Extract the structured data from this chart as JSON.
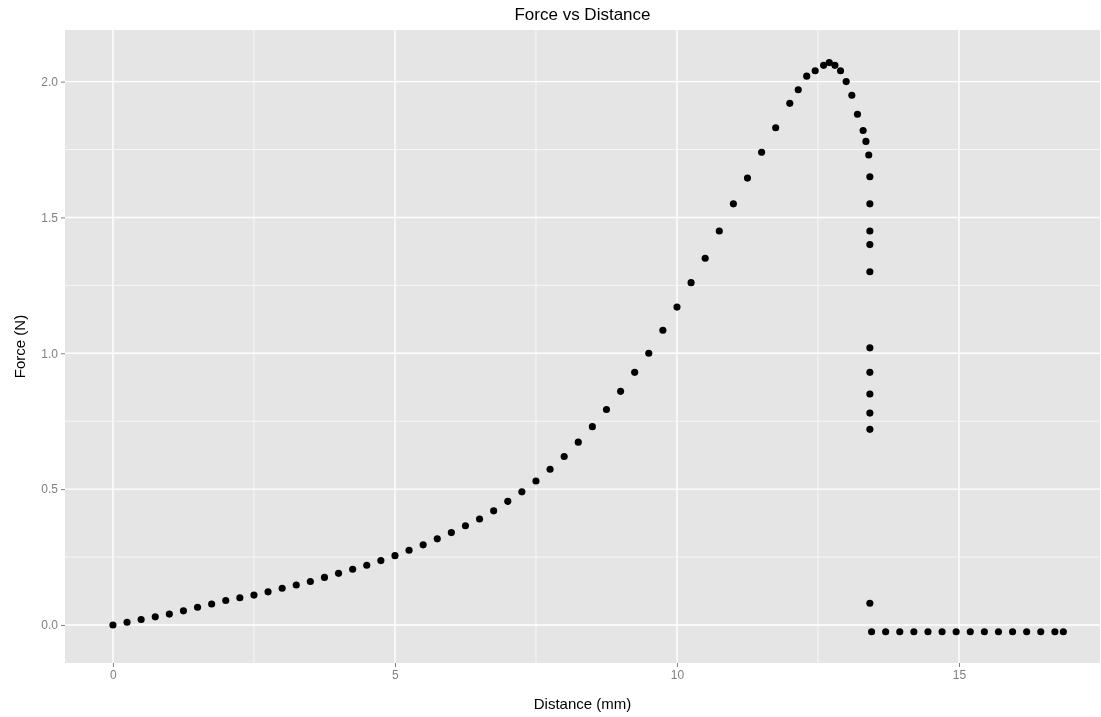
{
  "chart_data": {
    "type": "scatter",
    "title": "Force vs Distance",
    "xlabel": "Distance (mm)",
    "ylabel": "Force (N)",
    "xlim": [
      -0.85,
      17.5
    ],
    "ylim": [
      -0.14,
      2.19
    ],
    "xticks": [
      0,
      {
        "value": 2.5,
        "label": null
      },
      5,
      {
        "value": 7.5,
        "label": null
      },
      10,
      {
        "value": 12.5,
        "label": null
      },
      15
    ],
    "yticks": [
      "0.0",
      {
        "value": 0.25,
        "label": null
      },
      {
        "value": 0.5,
        "label": "0.5"
      },
      {
        "value": 0.75,
        "label": null
      },
      {
        "value": 1,
        "label": "1.0"
      },
      {
        "value": 1.25,
        "label": null
      },
      {
        "value": 1.5,
        "label": "1.5"
      },
      {
        "value": 1.75,
        "label": null
      },
      {
        "value": 2,
        "label": "2.0"
      }
    ],
    "grid": true,
    "marker": "circle",
    "series": [
      {
        "color": "#000000",
        "x": [
          0,
          0.25,
          0.5,
          0.75,
          1,
          1.25,
          1.5,
          1.75,
          2,
          2.25,
          2.5,
          2.75,
          3,
          3.25,
          3.5,
          3.75,
          4,
          4.25,
          4.5,
          4.75,
          5,
          5.25,
          5.5,
          5.75,
          6,
          6.25,
          6.5,
          6.75,
          7,
          7.25,
          7.5,
          7.75,
          8,
          8.25,
          8.5,
          8.75,
          9,
          9.25,
          9.5,
          9.75,
          10,
          10.25,
          10.5,
          10.75,
          11,
          11.25,
          11.5,
          11.75,
          12,
          12.15,
          12.3,
          12.45,
          12.6,
          12.7,
          12.8,
          12.9,
          13,
          13.1,
          13.2,
          13.3,
          13.35,
          13.4,
          13.42,
          13.42,
          13.42,
          13.42,
          13.42,
          13.42,
          13.42,
          13.42,
          13.42,
          13.42,
          13.42,
          13.45,
          13.7,
          13.95,
          14.2,
          14.45,
          14.7,
          14.95,
          15.2,
          15.45,
          15.7,
          15.95,
          16.2,
          16.45,
          16.7,
          16.85
        ],
        "values": [
          0,
          0.01,
          0.02,
          0.03,
          0.04,
          0.052,
          0.065,
          0.077,
          0.09,
          0.1,
          0.11,
          0.122,
          0.135,
          0.147,
          0.16,
          0.175,
          0.19,
          0.205,
          0.22,
          0.237,
          0.255,
          0.275,
          0.295,
          0.317,
          0.34,
          0.365,
          0.39,
          0.42,
          0.455,
          0.49,
          0.53,
          0.573,
          0.62,
          0.673,
          0.73,
          0.793,
          0.86,
          0.93,
          1.0,
          1.085,
          1.17,
          1.26,
          1.35,
          1.45,
          1.55,
          1.645,
          1.74,
          1.83,
          1.92,
          1.97,
          2.02,
          2.04,
          2.06,
          2.07,
          2.06,
          2.04,
          2.0,
          1.95,
          1.88,
          1.82,
          1.78,
          1.73,
          1.65,
          1.55,
          1.45,
          1.4,
          1.3,
          1.02,
          0.93,
          0.85,
          0.78,
          0.72,
          0.08,
          -0.025,
          -0.025,
          -0.025,
          -0.025,
          -0.025,
          -0.025,
          -0.025,
          -0.025,
          -0.025,
          -0.025,
          -0.025,
          -0.025,
          -0.025,
          -0.025,
          -0.025
        ]
      }
    ]
  }
}
